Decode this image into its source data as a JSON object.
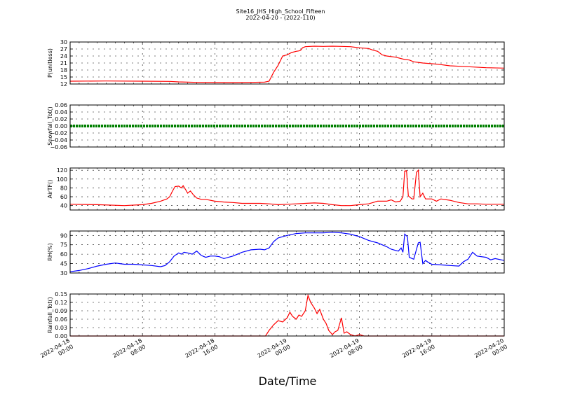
{
  "title_line1": "Site16_JHS_High_School_Fifteen",
  "title_line2": "2022-04-20 - (2022-110)",
  "xlabel": "Date/Time",
  "chart_data": {
    "type": "line",
    "title": "Site16_JHS_High_School_Fifteen",
    "subtitle": "2022-04-20 - (2022-110)",
    "xlabel": "Date/Time",
    "x_ticks": [
      [
        "2022-04-18",
        "00:00"
      ],
      [
        "2022-04-18",
        "08:00"
      ],
      [
        "2022-04-18",
        "16:00"
      ],
      [
        "2022-04-19",
        "00:00"
      ],
      [
        "2022-04-19",
        "08:00"
      ],
      [
        "2022-04-19",
        "16:00"
      ],
      [
        "2022-04-20",
        "00:00"
      ]
    ],
    "x_range_hours": [
      0,
      48
    ],
    "panels": [
      {
        "ylabel": "P(unitless)",
        "ylim": [
          12,
          30
        ],
        "yticks": [
          "12",
          "15",
          "18",
          "21",
          "24",
          "27",
          "30"
        ],
        "color": "#ff0000",
        "series": [
          [
            0,
            13.2
          ],
          [
            4,
            13.3
          ],
          [
            8,
            13.2
          ],
          [
            11,
            13.1
          ],
          [
            12,
            12.9
          ],
          [
            14,
            12.7
          ],
          [
            18,
            12.6
          ],
          [
            20,
            12.7
          ],
          [
            21.5,
            12.8
          ],
          [
            22,
            13.2
          ],
          [
            22.5,
            17
          ],
          [
            23,
            20
          ],
          [
            23.5,
            24
          ],
          [
            24,
            24.5
          ],
          [
            24.5,
            25.5
          ],
          [
            25,
            26
          ],
          [
            25.3,
            26.2
          ],
          [
            25.5,
            26.5
          ],
          [
            25.7,
            27.5
          ],
          [
            26,
            28
          ],
          [
            27,
            28.2
          ],
          [
            28,
            28.1
          ],
          [
            29,
            28.2
          ],
          [
            30,
            28.1
          ],
          [
            31,
            28
          ],
          [
            32,
            27.5
          ],
          [
            33,
            27.2
          ],
          [
            33.5,
            26.5
          ],
          [
            34,
            26
          ],
          [
            34.5,
            24.5
          ],
          [
            35,
            24
          ],
          [
            36,
            23.5
          ],
          [
            37,
            22.5
          ],
          [
            37.5,
            22.3
          ],
          [
            38,
            21.5
          ],
          [
            39,
            21
          ],
          [
            40,
            20.7
          ],
          [
            41,
            20.3
          ],
          [
            42,
            19.8
          ],
          [
            44,
            19.4
          ],
          [
            46,
            19
          ],
          [
            48,
            18.8
          ]
        ]
      },
      {
        "ylabel": "Snowfall_Tot()",
        "ylim": [
          -0.06,
          0.06
        ],
        "yticks": [
          "−0.06",
          "−0.04",
          "−0.02",
          "0.00",
          "0.02",
          "0.04",
          "0.06"
        ],
        "color": "#008000",
        "series": [
          [
            0,
            0
          ],
          [
            48,
            0
          ]
        ]
      },
      {
        "ylabel": "AirTF()",
        "ylim": [
          30,
          125
        ],
        "yticks": [
          "40",
          "60",
          "80",
          "100",
          "120"
        ],
        "color": "#ff0000",
        "series": [
          [
            0,
            43
          ],
          [
            3,
            42
          ],
          [
            6,
            40
          ],
          [
            8,
            42
          ],
          [
            9,
            45
          ],
          [
            10,
            50
          ],
          [
            10.7,
            55
          ],
          [
            11,
            60
          ],
          [
            11.3,
            72
          ],
          [
            11.6,
            83
          ],
          [
            12,
            84
          ],
          [
            12.3,
            80
          ],
          [
            12.5,
            85
          ],
          [
            12.8,
            75
          ],
          [
            13,
            68
          ],
          [
            13.3,
            73
          ],
          [
            13.6,
            65
          ],
          [
            14,
            57
          ],
          [
            14.5,
            54
          ],
          [
            15,
            54
          ],
          [
            16,
            50
          ],
          [
            17,
            48
          ],
          [
            18,
            47
          ],
          [
            19,
            45
          ],
          [
            20,
            45
          ],
          [
            21,
            45
          ],
          [
            22,
            44
          ],
          [
            23,
            42
          ],
          [
            24,
            43
          ],
          [
            25,
            44
          ],
          [
            26,
            45
          ],
          [
            27,
            46
          ],
          [
            28,
            45
          ],
          [
            29,
            42
          ],
          [
            30,
            40
          ],
          [
            31,
            40
          ],
          [
            32,
            42
          ],
          [
            33,
            44
          ],
          [
            33.5,
            47
          ],
          [
            34,
            50
          ],
          [
            35,
            50
          ],
          [
            35.5,
            53
          ],
          [
            36,
            48
          ],
          [
            36.5,
            50
          ],
          [
            36.8,
            60
          ],
          [
            37,
            118
          ],
          [
            37.2,
            119
          ],
          [
            37.4,
            62
          ],
          [
            37.8,
            55
          ],
          [
            38,
            55
          ],
          [
            38.3,
            115
          ],
          [
            38.5,
            120
          ],
          [
            38.7,
            60
          ],
          [
            39,
            68
          ],
          [
            39.3,
            55
          ],
          [
            40,
            55
          ],
          [
            40.5,
            50
          ],
          [
            41,
            55
          ],
          [
            42,
            52
          ],
          [
            43,
            47
          ],
          [
            44,
            44
          ],
          [
            45,
            44
          ],
          [
            46,
            43
          ],
          [
            48,
            43
          ]
        ]
      },
      {
        "ylabel": "RH(%)",
        "ylim": [
          30,
          97
        ],
        "yticks": [
          "30",
          "45",
          "60",
          "75",
          "90"
        ],
        "color": "#0000ff",
        "series": [
          [
            0,
            32
          ],
          [
            1,
            34
          ],
          [
            2,
            37
          ],
          [
            3,
            41
          ],
          [
            4,
            44
          ],
          [
            5,
            46
          ],
          [
            5.5,
            45
          ],
          [
            6,
            44
          ],
          [
            7,
            44
          ],
          [
            8,
            43
          ],
          [
            9,
            42
          ],
          [
            10,
            40
          ],
          [
            10.5,
            42
          ],
          [
            11,
            48
          ],
          [
            11.5,
            57
          ],
          [
            12,
            62
          ],
          [
            12.3,
            60
          ],
          [
            12.6,
            63
          ],
          [
            13,
            62
          ],
          [
            13.5,
            60
          ],
          [
            14,
            65
          ],
          [
            14.5,
            58
          ],
          [
            15,
            55
          ],
          [
            15.5,
            57
          ],
          [
            16,
            57
          ],
          [
            16.5,
            56
          ],
          [
            17,
            53
          ],
          [
            17.5,
            55
          ],
          [
            18,
            57
          ],
          [
            19,
            63
          ],
          [
            20,
            67
          ],
          [
            21,
            68
          ],
          [
            21.5,
            67
          ],
          [
            22,
            70
          ],
          [
            22.5,
            80
          ],
          [
            23,
            86
          ],
          [
            24,
            90
          ],
          [
            25,
            93
          ],
          [
            26,
            94
          ],
          [
            27,
            94
          ],
          [
            28,
            94
          ],
          [
            29,
            95
          ],
          [
            30,
            94
          ],
          [
            31,
            92
          ],
          [
            32,
            88
          ],
          [
            33,
            82
          ],
          [
            34,
            78
          ],
          [
            35,
            72
          ],
          [
            35.5,
            68
          ],
          [
            36,
            66
          ],
          [
            36.3,
            65
          ],
          [
            36.6,
            70
          ],
          [
            36.8,
            63
          ],
          [
            37,
            92
          ],
          [
            37.3,
            88
          ],
          [
            37.5,
            55
          ],
          [
            38,
            52
          ],
          [
            38.5,
            78
          ],
          [
            38.7,
            79
          ],
          [
            39,
            45
          ],
          [
            39.3,
            50
          ],
          [
            39.6,
            47
          ],
          [
            40,
            44
          ],
          [
            41,
            43
          ],
          [
            42,
            42
          ],
          [
            43,
            41
          ],
          [
            43.5,
            48
          ],
          [
            44,
            52
          ],
          [
            44.5,
            63
          ],
          [
            45,
            57
          ],
          [
            46,
            55
          ],
          [
            46.5,
            51
          ],
          [
            47,
            53
          ],
          [
            48,
            50
          ]
        ]
      },
      {
        "ylabel": "Rainfall_Tot()",
        "ylim": [
          0,
          0.15
        ],
        "yticks": [
          "0.00",
          "0.03",
          "0.06",
          "0.09",
          "0.12",
          "0.15"
        ],
        "color": "#ff0000",
        "series": [
          [
            0,
            0
          ],
          [
            21.6,
            0
          ],
          [
            22,
            0.02
          ],
          [
            22.5,
            0.04
          ],
          [
            23,
            0.055
          ],
          [
            23.5,
            0.05
          ],
          [
            24,
            0.065
          ],
          [
            24.3,
            0.085
          ],
          [
            24.6,
            0.07
          ],
          [
            25,
            0.06
          ],
          [
            25.3,
            0.075
          ],
          [
            25.6,
            0.07
          ],
          [
            26,
            0.09
          ],
          [
            26.3,
            0.145
          ],
          [
            26.6,
            0.12
          ],
          [
            27,
            0.1
          ],
          [
            27.3,
            0.08
          ],
          [
            27.6,
            0.095
          ],
          [
            28,
            0.06
          ],
          [
            28.3,
            0.045
          ],
          [
            28.6,
            0.02
          ],
          [
            29,
            0.005
          ],
          [
            29.3,
            0.015
          ],
          [
            29.6,
            0.02
          ],
          [
            30,
            0.065
          ],
          [
            30.3,
            0.01
          ],
          [
            30.6,
            0.015
          ],
          [
            31,
            0.005
          ],
          [
            31.5,
            0
          ],
          [
            32,
            0.005
          ],
          [
            32.5,
            0
          ],
          [
            48,
            0
          ]
        ]
      }
    ]
  }
}
